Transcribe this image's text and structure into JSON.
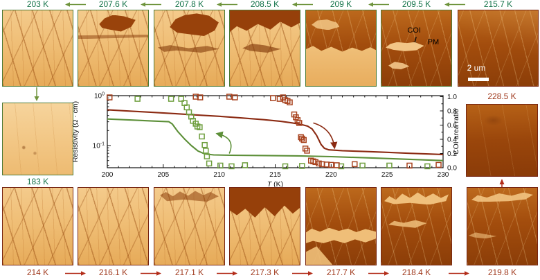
{
  "figure": {
    "cooling_row": {
      "direction": "left",
      "labels": [
        "203 K",
        "207.6 K",
        "207.8 K",
        "208.5 K",
        "209 K",
        "209.5 K",
        "215.7 K"
      ]
    },
    "heating_row": {
      "direction": "right",
      "labels": [
        "214 K",
        "216.1 K",
        "217.1 K",
        "217.3 K",
        "217.7 K",
        "218.4 K",
        "219.8 K"
      ]
    },
    "cooled_end": {
      "label": "183 K"
    },
    "heated_end": {
      "label": "228.5 K"
    },
    "image_annotations": {
      "coi_label": "COI",
      "pm_label": "PM",
      "scale_bar": "2 um"
    }
  },
  "colors": {
    "cooling_label_green": "#147349",
    "cooling_arrow_green": "#6f943d",
    "heating_label_red": "#a03a1e",
    "heating_arrow_red": "#b32d1a",
    "chart_green": "#5c8f38",
    "chart_red": "#8b2a12"
  },
  "chart_data": {
    "type": "line+scatter",
    "xlabel": "T (K)",
    "ylabel_left": "Resistivity (Ω · cm)",
    "ylabel_right": "COI area ratio",
    "xlim": [
      200,
      230
    ],
    "x_major_ticks": [
      200,
      205,
      210,
      215,
      220,
      225,
      230
    ],
    "left_axis": {
      "scale": "log",
      "ticks": [
        {
          "base": "10",
          "exp": "0",
          "value": 1
        },
        {
          "base": "10",
          "exp": "-1",
          "value": 0.1
        }
      ],
      "range": [
        0.036,
        1.0
      ]
    },
    "right_axis": {
      "ticks": [
        0,
        0.2,
        0.4,
        0.6,
        0.8,
        1.0
      ],
      "range": [
        0,
        1
      ]
    },
    "grid": false,
    "series": [
      {
        "name": "resistivity_cooling",
        "axis": "left",
        "type": "line",
        "color": "#5c8f38",
        "points": [
          [
            200,
            0.34
          ],
          [
            202,
            0.325
          ],
          [
            204,
            0.31
          ],
          [
            205.5,
            0.3
          ],
          [
            205.8,
            0.27
          ],
          [
            206.3,
            0.19
          ],
          [
            206.9,
            0.135
          ],
          [
            207.5,
            0.1
          ],
          [
            208.1,
            0.078
          ],
          [
            208.7,
            0.068
          ],
          [
            209.5,
            0.065
          ],
          [
            211,
            0.064
          ],
          [
            214,
            0.063
          ],
          [
            217,
            0.062
          ],
          [
            220,
            0.06
          ],
          [
            223,
            0.057
          ],
          [
            226,
            0.054
          ],
          [
            230,
            0.05
          ]
        ]
      },
      {
        "name": "resistivity_heating",
        "axis": "left",
        "type": "line",
        "color": "#8b2a12",
        "points": [
          [
            200,
            0.52
          ],
          [
            202,
            0.49
          ],
          [
            204,
            0.463
          ],
          [
            206,
            0.437
          ],
          [
            208,
            0.41
          ],
          [
            210,
            0.385
          ],
          [
            212,
            0.357
          ],
          [
            214,
            0.33
          ],
          [
            215.5,
            0.305
          ],
          [
            216.5,
            0.285
          ],
          [
            217.3,
            0.265
          ],
          [
            217.9,
            0.245
          ],
          [
            218.3,
            0.215
          ],
          [
            218.7,
            0.16
          ],
          [
            219.1,
            0.105
          ],
          [
            219.4,
            0.088
          ],
          [
            219.8,
            0.082
          ],
          [
            221,
            0.079
          ],
          [
            223,
            0.076
          ],
          [
            225,
            0.073
          ],
          [
            227,
            0.07
          ],
          [
            230,
            0.066
          ]
        ]
      },
      {
        "name": "coi_area_ratio_cooling",
        "axis": "right",
        "type": "scatter_square",
        "color": "#6f9f3f",
        "points": [
          [
            202.7,
            0.97
          ],
          [
            205.7,
            0.97
          ],
          [
            206.6,
            0.97
          ],
          [
            206.9,
            0.91
          ],
          [
            207.1,
            0.85
          ],
          [
            207.3,
            0.78
          ],
          [
            207.5,
            0.72
          ],
          [
            207.65,
            0.66
          ],
          [
            207.9,
            0.62
          ],
          [
            208.05,
            0.58
          ],
          [
            208.25,
            0.57
          ],
          [
            208.45,
            0.44
          ],
          [
            208.7,
            0.32
          ],
          [
            208.8,
            0.24
          ],
          [
            208.9,
            0.16
          ],
          [
            209.1,
            0.06
          ],
          [
            210.1,
            0.03
          ],
          [
            211.1,
            0.02
          ],
          [
            212.3,
            0.035
          ],
          [
            215.9,
            0.02
          ],
          [
            217.4,
            0.025
          ],
          [
            220.9,
            0.02
          ],
          [
            222.8,
            0.03
          ],
          [
            225.2,
            0.03
          ],
          [
            228.6,
            0.02
          ]
        ]
      },
      {
        "name": "coi_area_ratio_heating",
        "axis": "right",
        "type": "scatter_square",
        "color": "#a8431f",
        "points": [
          [
            200.2,
            0.99
          ],
          [
            207.9,
            1.0
          ],
          [
            208.3,
            0.99
          ],
          [
            210.9,
            1.0
          ],
          [
            211.4,
            0.99
          ],
          [
            214.8,
            0.98
          ],
          [
            215.4,
            0.97
          ],
          [
            215.7,
            0.99
          ],
          [
            215.9,
            0.95
          ],
          [
            216.1,
            0.94
          ],
          [
            216.3,
            0.92
          ],
          [
            216.7,
            0.75
          ],
          [
            216.85,
            0.71
          ],
          [
            217.0,
            0.67
          ],
          [
            217.15,
            0.63
          ],
          [
            217.3,
            0.43
          ],
          [
            217.4,
            0.41
          ],
          [
            217.55,
            0.39
          ],
          [
            217.7,
            0.27
          ],
          [
            217.85,
            0.24
          ],
          [
            218.2,
            0.1
          ],
          [
            218.4,
            0.09
          ],
          [
            218.6,
            0.08
          ],
          [
            218.9,
            0.06
          ],
          [
            219.2,
            0.05
          ],
          [
            219.6,
            0.045
          ],
          [
            220.0,
            0.04
          ],
          [
            220.5,
            0.035
          ],
          [
            222.1,
            0.05
          ],
          [
            227.0,
            0.03
          ],
          [
            229.6,
            0.04
          ]
        ]
      }
    ],
    "annotations": [
      {
        "type": "arrow",
        "name": "cooling-direction-arrow",
        "color": "#5c8f38",
        "from": [
          210.9,
          0.2
        ],
        "bend": [
          211.5,
          0.42
        ],
        "to": [
          209.8,
          0.48
        ]
      },
      {
        "type": "arrow",
        "name": "heating-direction-arrow",
        "color": "#8b2a12",
        "from": [
          218.4,
          0.63
        ],
        "bend": [
          220.1,
          0.55
        ],
        "to": [
          220.3,
          0.28
        ]
      }
    ],
    "legend": null
  }
}
